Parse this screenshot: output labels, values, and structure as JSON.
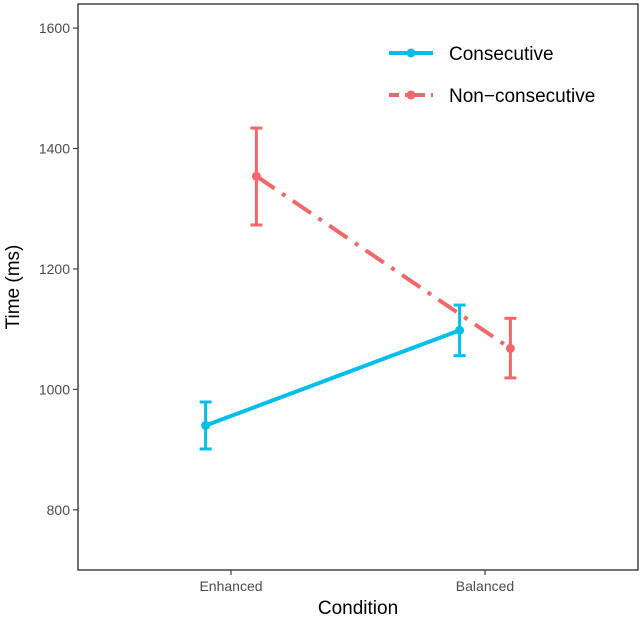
{
  "chart_data": {
    "type": "line",
    "xlabel": "Condition",
    "ylabel": "Time (ms)",
    "categories": [
      "Enhanced",
      "Balanced"
    ],
    "ylim": [
      700,
      1640
    ],
    "yticks": [
      800,
      1000,
      1200,
      1400,
      1600
    ],
    "ytick_labels": [
      "800",
      "1000",
      "1200",
      "1400",
      "1600"
    ],
    "grid": false,
    "legend_position": "top-right",
    "series": [
      {
        "name": "Consecutive",
        "color": "#00BFE7",
        "line_style": "solid",
        "values": [
          940,
          1098
        ],
        "error_low": [
          901,
          1056
        ],
        "error_high": [
          979,
          1140
        ],
        "x_offset": -0.1
      },
      {
        "name": "Non−consecutive",
        "color": "#F0696A",
        "line_style": "dashdot",
        "values": [
          1354,
          1068
        ],
        "error_low": [
          1273,
          1019
        ],
        "error_high": [
          1434,
          1118
        ],
        "x_offset": 0.1
      }
    ]
  }
}
